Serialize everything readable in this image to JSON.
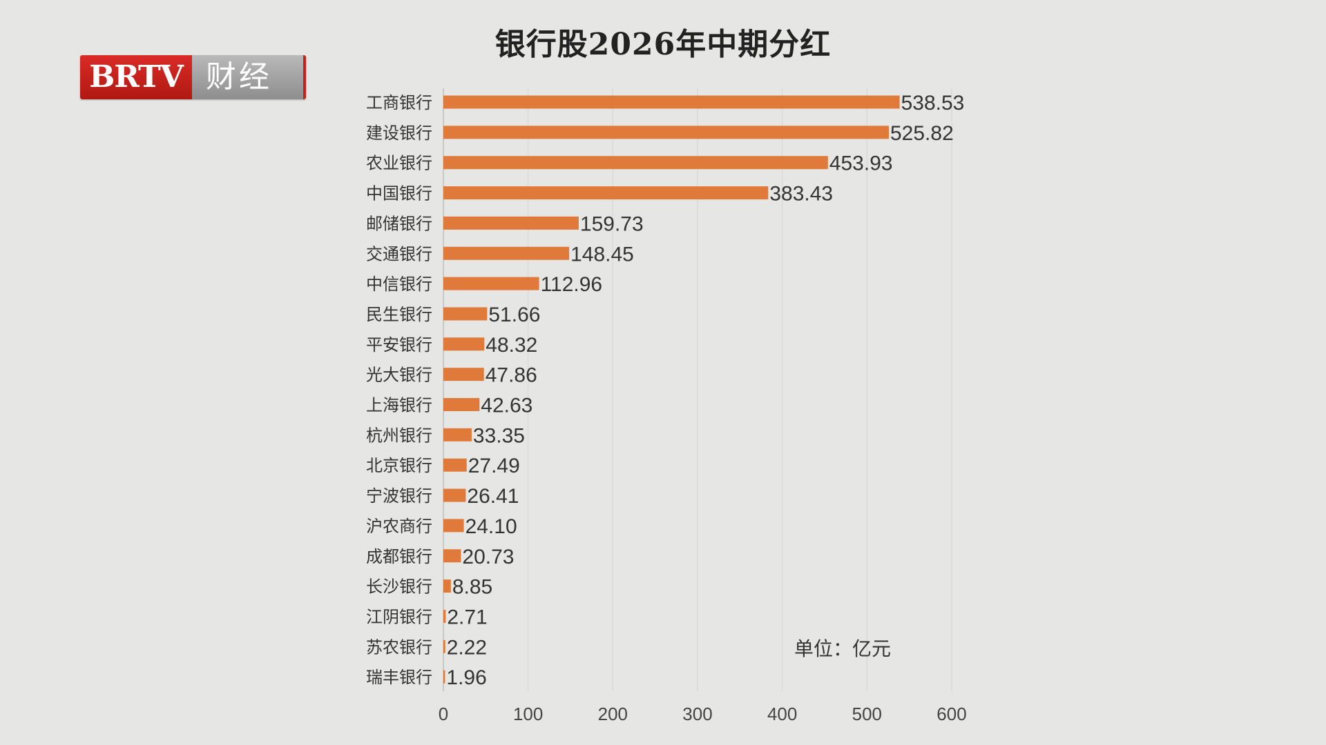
{
  "brand": {
    "logo_left": "BRTV",
    "logo_right": "财经"
  },
  "chart_data": {
    "type": "bar",
    "orientation": "horizontal",
    "title": "银行股2026年中期分红",
    "unit_note": "单位：亿元",
    "categories": [
      "工商银行",
      "建设银行",
      "农业银行",
      "中国银行",
      "邮储银行",
      "交通银行",
      "中信银行",
      "民生银行",
      "平安银行",
      "光大银行",
      "上海银行",
      "杭州银行",
      "北京银行",
      "宁波银行",
      "沪农商行",
      "成都银行",
      "长沙银行",
      "江阴银行",
      "苏农银行",
      "瑞丰银行"
    ],
    "values": [
      538.53,
      525.82,
      453.93,
      383.43,
      159.73,
      148.45,
      112.96,
      51.66,
      48.32,
      47.86,
      42.63,
      33.35,
      27.49,
      26.41,
      24.1,
      20.73,
      8.85,
      2.71,
      2.22,
      1.96
    ],
    "value_labels": [
      "538.53",
      "525.82",
      "453.93",
      "383.43",
      "159.73",
      "148.45",
      "112.96",
      "51.66",
      "48.32",
      "47.86",
      "42.63",
      "33.35",
      "27.49",
      "26.41",
      "24.10",
      "20.73",
      "8.85",
      "2.71",
      "2.22",
      "1.96"
    ],
    "xlim": [
      0,
      600
    ],
    "xticks": [
      "0",
      "100",
      "200",
      "300",
      "400",
      "500",
      "600"
    ],
    "grid": "vertical",
    "bar_color": "#e07a3a",
    "grid_color": "#d4d4d2"
  }
}
